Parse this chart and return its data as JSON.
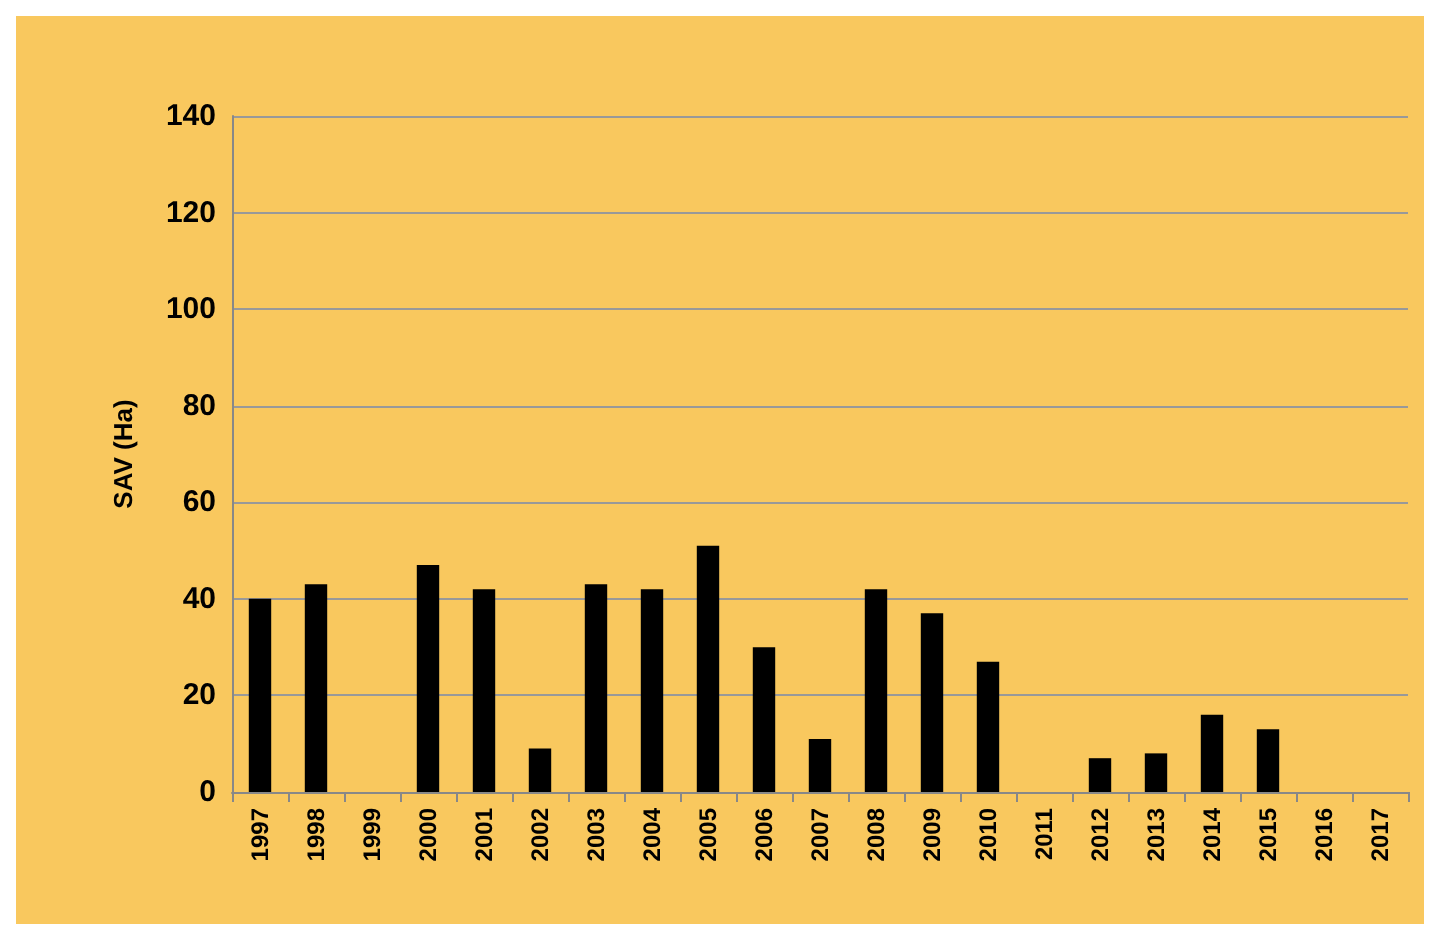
{
  "chart_data": {
    "type": "bar",
    "ylabel": "SAV (Ha)",
    "categories": [
      "1997",
      "1998",
      "1999",
      "2000",
      "2001",
      "2002",
      "2003",
      "2004",
      "2005",
      "2006",
      "2007",
      "2008",
      "2009",
      "2010",
      "2011",
      "2012",
      "2013",
      "2014",
      "2015",
      "2016",
      "2017"
    ],
    "values": [
      40,
      43,
      null,
      47,
      42,
      9,
      43,
      42,
      51,
      30,
      11,
      42,
      37,
      27,
      null,
      7,
      8,
      16,
      13,
      null,
      null
    ],
    "color": "#000000",
    "ylim": [
      0,
      140
    ],
    "yticks": [
      0,
      20,
      40,
      60,
      80,
      100,
      120,
      140
    ],
    "grid": "y"
  }
}
